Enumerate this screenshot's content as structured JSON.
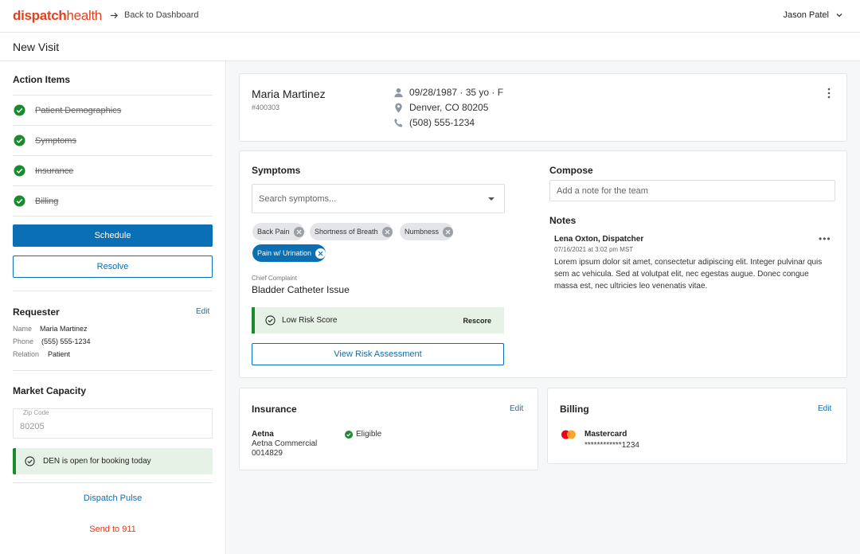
{
  "header": {
    "logo_bold": "dispatch",
    "logo_light": "health",
    "back_label": "Back to Dashboard",
    "user_name": "Jason Patel"
  },
  "page": {
    "title": "New Visit"
  },
  "sidebar": {
    "action_items_title": "Action Items",
    "action_items": [
      {
        "label": "Patient Demographics"
      },
      {
        "label": "Symptoms"
      },
      {
        "label": "Insurance"
      },
      {
        "label": "Billing"
      }
    ],
    "schedule_label": "Schedule",
    "resolve_label": "Resolve",
    "requester": {
      "title": "Requester",
      "edit_label": "Edit",
      "name_key": "Name",
      "name_value": "Maria Martinez",
      "phone_key": "Phone",
      "phone_value": "(555) 555-1234",
      "relation_key": "Relation",
      "relation_value": "Patient"
    },
    "market": {
      "title": "Market Capacity",
      "zip_label": "Zip Code",
      "zip_value": "80205",
      "notice": "DEN is open for booking today"
    },
    "dispatch_pulse_label": "Dispatch Pulse",
    "send_911_label": "Send to 911"
  },
  "patient": {
    "name": "Maria Martinez",
    "id": "#400303",
    "dob": "09/28/1987 · 35 yo · F",
    "location": "Denver, CO 80205",
    "phone": "(508) 555-1234"
  },
  "symptoms": {
    "title": "Symptoms",
    "search_placeholder": "Search symptoms...",
    "chips": [
      {
        "label": "Back Pain"
      },
      {
        "label": "Shortness of Breath"
      },
      {
        "label": "Numbness"
      },
      {
        "label": "Pain w/ Urination"
      }
    ],
    "chief_complaint_label": "Chief Complaint",
    "chief_complaint_value": "Bladder Catheter Issue",
    "risk_label": "Low Risk Score",
    "rescore_label": "Rescore",
    "view_risk_label": "View Risk Assessment"
  },
  "compose": {
    "title": "Compose",
    "placeholder": "Add a note for the team"
  },
  "notes": {
    "title": "Notes",
    "author": "Lena Oxton, Dispatcher",
    "timestamp": "07/16/2021 at 3:02 pm MST",
    "body": "Lorem ipsum dolor sit amet, consectetur adipiscing elit. Integer pulvinar quis sem ac vehicula. Sed at volutpat elit, nec egestas augue. Donec congue massa est, nec ultricies leo venenatis vitae."
  },
  "insurance": {
    "title": "Insurance",
    "edit_label": "Edit",
    "provider": "Aetna",
    "plan": "Aetna Commercial",
    "member_id": "0014829",
    "status": "Eligible"
  },
  "billing": {
    "title": "Billing",
    "edit_label": "Edit",
    "card_brand": "Mastercard",
    "card_number": "************1234"
  },
  "colors": {
    "brand_red": "#e5401d",
    "primary_blue": "#0b6fb5",
    "success_green": "#1b8a2e",
    "danger_red": "#d93a1f"
  }
}
